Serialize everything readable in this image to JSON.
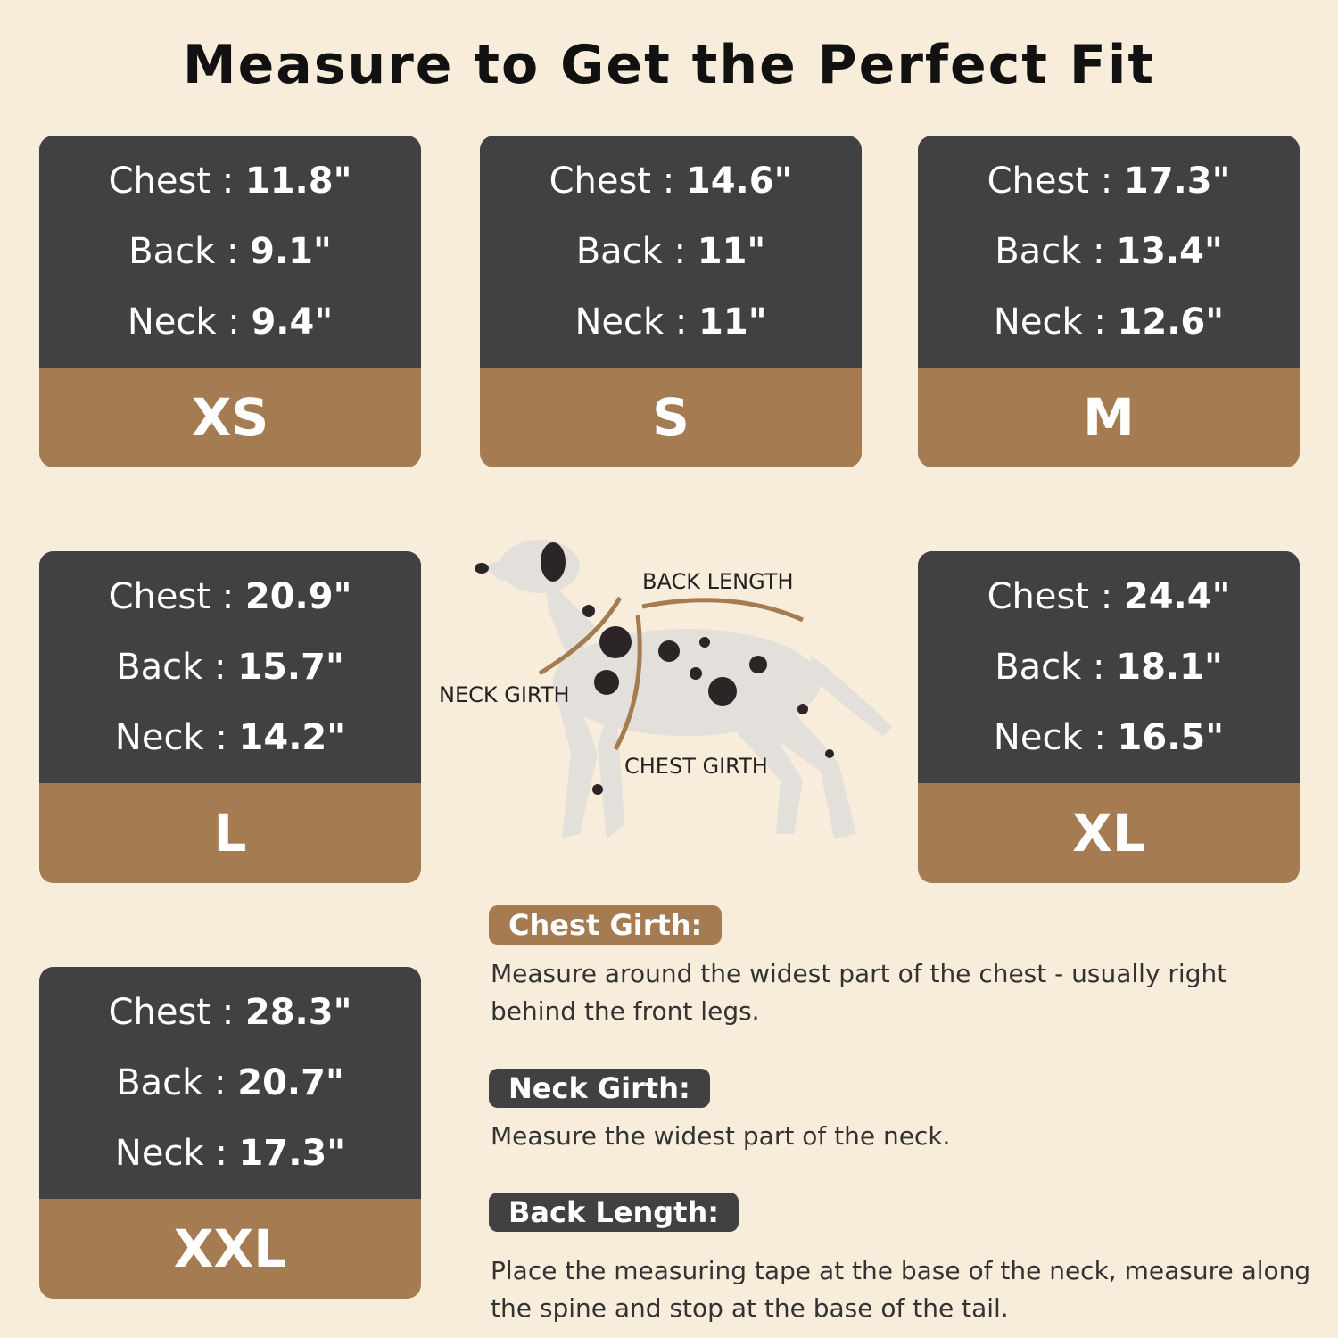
{
  "title": "Measure to Get the Perfect Fit",
  "colors": {
    "background": "#f8ecda",
    "card_dark": "#414144",
    "card_accent": "#a57b52"
  },
  "sizes": [
    {
      "size": "XS",
      "chest_label": "Chest :",
      "chest": "11.8\"",
      "back_label": "Back :",
      "back": "9.1\"",
      "neck_label": "Neck :",
      "neck": "9.4\""
    },
    {
      "size": "S",
      "chest_label": "Chest :",
      "chest": "14.6\"",
      "back_label": "Back :",
      "back": "11\"",
      "neck_label": "Neck :",
      "neck": "11\""
    },
    {
      "size": "M",
      "chest_label": "Chest :",
      "chest": "17.3\"",
      "back_label": "Back :",
      "back": "13.4\"",
      "neck_label": "Neck :",
      "neck": "12.6\""
    },
    {
      "size": "L",
      "chest_label": "Chest :",
      "chest": "20.9\"",
      "back_label": "Back :",
      "back": "15.7\"",
      "neck_label": "Neck :",
      "neck": "14.2\""
    },
    {
      "size": "XL",
      "chest_label": "Chest :",
      "chest": "24.4\"",
      "back_label": "Back :",
      "back": "18.1\"",
      "neck_label": "Neck :",
      "neck": "16.5\""
    },
    {
      "size": "XXL",
      "chest_label": "Chest :",
      "chest": "28.3\"",
      "back_label": "Back :",
      "back": "20.7\"",
      "neck_label": "Neck :",
      "neck": "17.3\""
    }
  ],
  "diagram": {
    "back_length": "BACK LENGTH",
    "neck_girth": "NECK GIRTH",
    "chest_girth": "CHEST GIRTH",
    "icon": "dalmatian-dog"
  },
  "guide": [
    {
      "label": "Chest Girth:",
      "text": "Measure around the widest part of the chest - usually right behind the front legs."
    },
    {
      "label": "Neck Girth:",
      "text": "Measure the widest part of the neck."
    },
    {
      "label": "Back Length:",
      "text": "Place the measuring tape at the base of the neck, measure along the spine and stop at the base of the tail."
    }
  ]
}
